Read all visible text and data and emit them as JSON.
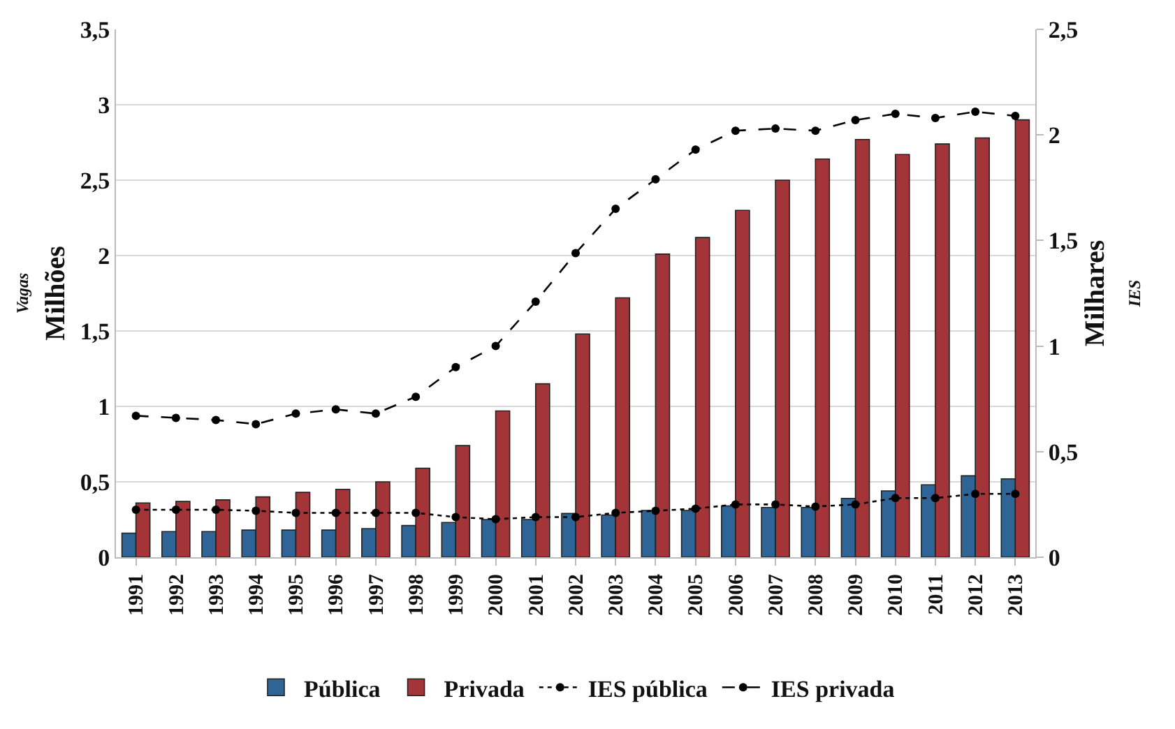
{
  "chart_data": {
    "type": "bar",
    "ylabel": "Vagas\nMilhões",
    "y2label": "Milhares\nIES",
    "categories": [
      "1991",
      "1992",
      "1993",
      "1994",
      "1995",
      "1996",
      "1997",
      "1998",
      "1999",
      "2000",
      "2001",
      "2002",
      "2003",
      "2004",
      "2005",
      "2006",
      "2007",
      "2008",
      "2009",
      "2010",
      "2011",
      "2012",
      "2013"
    ],
    "series": [
      {
        "name": "Pública",
        "color": "#2e6496",
        "values": [
          0.16,
          0.17,
          0.17,
          0.18,
          0.18,
          0.18,
          0.19,
          0.21,
          0.23,
          0.25,
          0.25,
          0.29,
          0.28,
          0.31,
          0.31,
          0.34,
          0.33,
          0.33,
          0.39,
          0.44,
          0.48,
          0.54,
          0.52
        ]
      },
      {
        "name": "Privada",
        "color": "#a33538",
        "values": [
          0.36,
          0.37,
          0.38,
          0.4,
          0.43,
          0.45,
          0.5,
          0.59,
          0.74,
          0.97,
          1.15,
          1.48,
          1.72,
          2.01,
          2.12,
          2.3,
          2.5,
          2.64,
          2.77,
          2.67,
          2.74,
          2.78,
          2.9
        ]
      },
      {
        "name": "IES pública",
        "type": "line",
        "axis": "y2",
        "color": "#000000",
        "line_style": "dotted",
        "marker": "circle",
        "values": [
          0.225,
          0.225,
          0.225,
          0.22,
          0.21,
          0.21,
          0.21,
          0.21,
          0.19,
          0.18,
          0.19,
          0.19,
          0.21,
          0.22,
          0.23,
          0.25,
          0.25,
          0.24,
          0.25,
          0.28,
          0.28,
          0.3,
          0.3
        ]
      },
      {
        "name": "IES privada",
        "type": "line",
        "axis": "y2",
        "color": "#000000",
        "line_style": "dashed",
        "marker": "circle",
        "values": [
          0.67,
          0.66,
          0.65,
          0.63,
          0.68,
          0.7,
          0.68,
          0.76,
          0.9,
          1.0,
          1.21,
          1.44,
          1.65,
          1.79,
          1.93,
          2.02,
          2.03,
          2.02,
          2.07,
          2.1,
          2.08,
          2.11,
          2.09
        ]
      }
    ],
    "ylim": [
      0,
      3.5
    ],
    "yticks": [
      0,
      {
        "value": 0.5,
        "label": "0,5"
      },
      1,
      {
        "value": 1.5,
        "label": "1,5"
      },
      2,
      {
        "value": 2.5,
        "label": "2,5"
      },
      3,
      {
        "value": 3.5,
        "label": "3,5"
      }
    ],
    "y2lim": [
      0,
      2.5
    ],
    "y2ticks": [
      0,
      {
        "value": 0.5,
        "label": "0,5"
      },
      1,
      {
        "value": 1.5,
        "label": "1,5"
      },
      2,
      {
        "value": 2.5,
        "label": "2,5"
      }
    ],
    "grid": "y",
    "legend": "bottom"
  }
}
